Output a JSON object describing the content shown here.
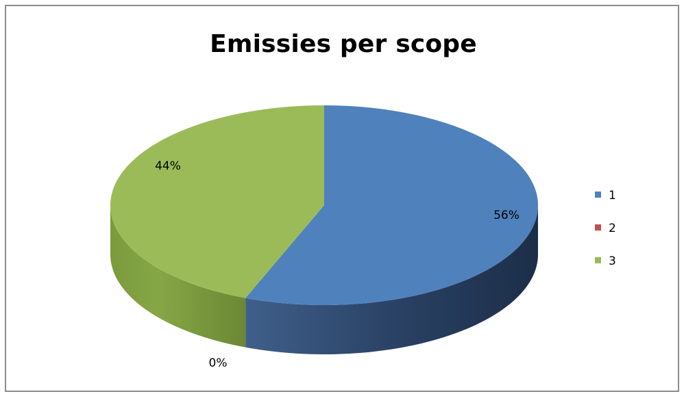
{
  "chart_data": {
    "type": "pie",
    "title": "Emissies per scope",
    "categories": [
      "1",
      "2",
      "3"
    ],
    "values": [
      56,
      0,
      44
    ],
    "data_labels": [
      "56%",
      "0%",
      "44%"
    ],
    "colors": {
      "1": "#4f81bd",
      "2": "#c0504d",
      "3": "#9bbb59"
    },
    "legend_position": "right",
    "three_d": true
  }
}
